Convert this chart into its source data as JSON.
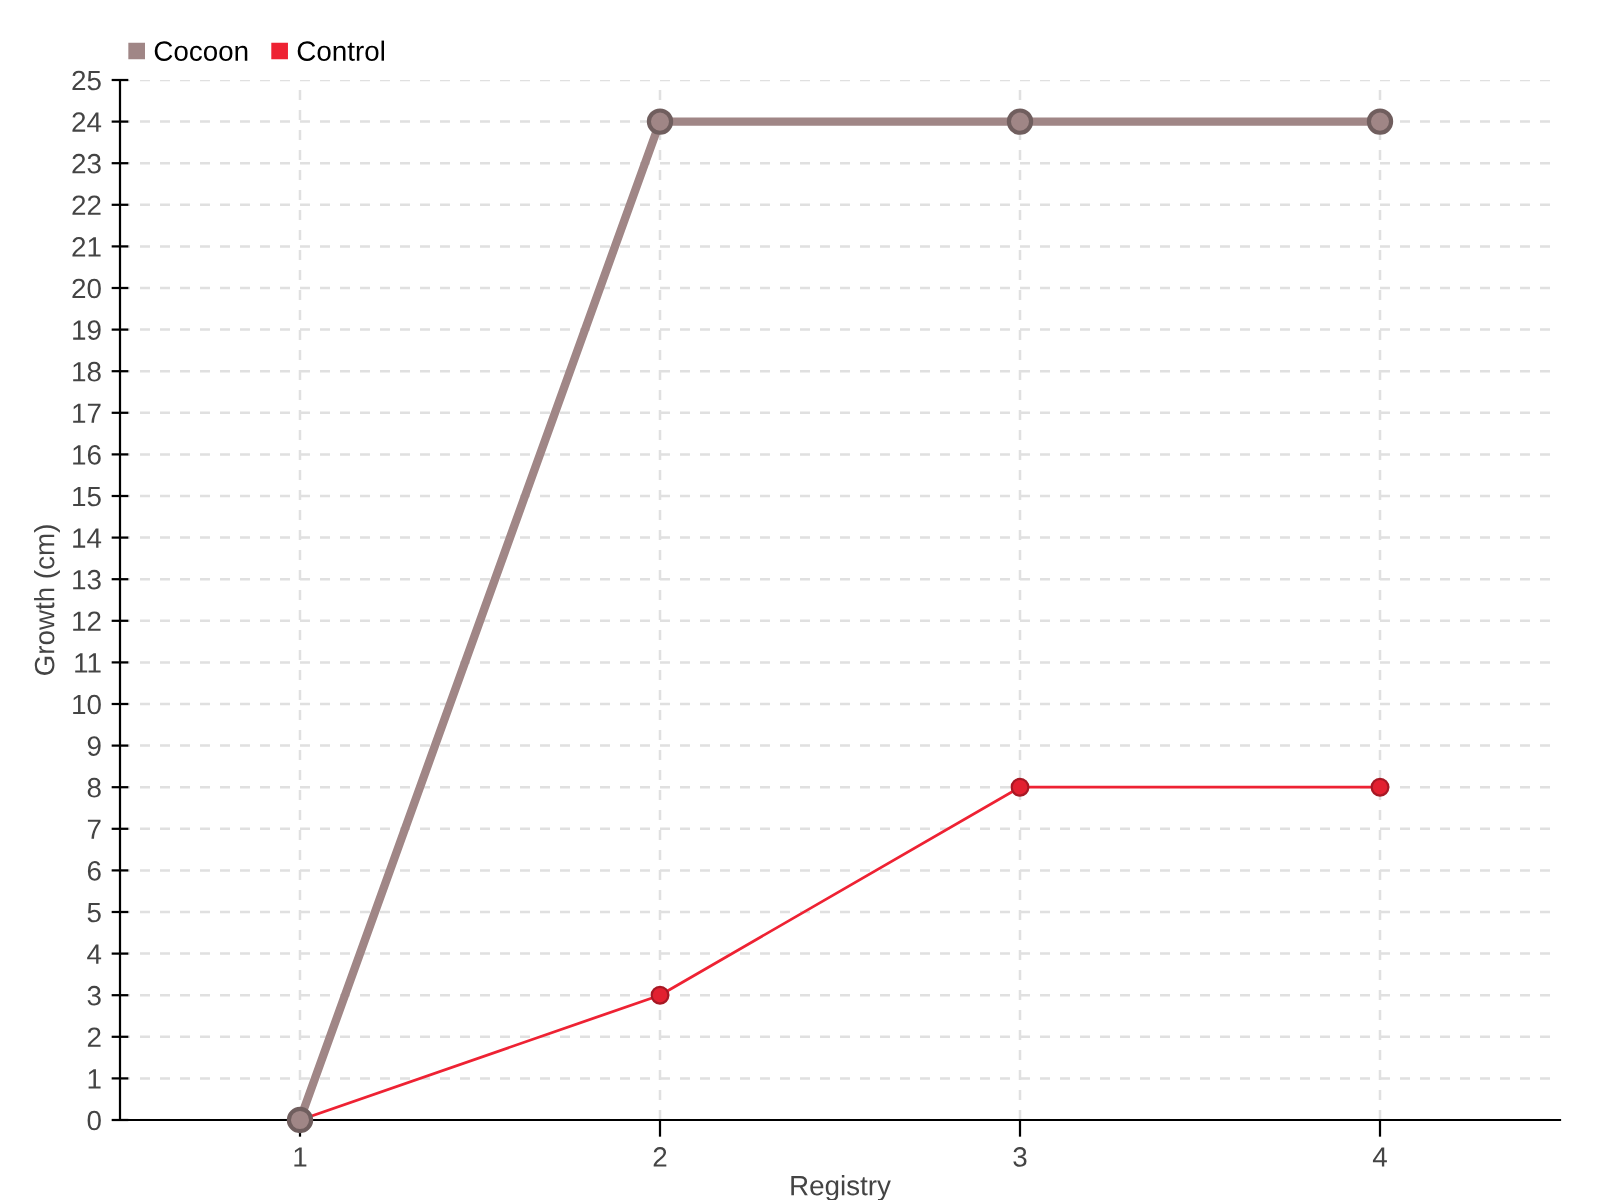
{
  "chart_data": {
    "type": "line",
    "xlabel": "Registry",
    "ylabel": "Growth (cm)",
    "categories": [
      "1",
      "2",
      "3",
      "4"
    ],
    "series": [
      {
        "name": "Cocoon",
        "color": "#a08686",
        "values": [
          0,
          24,
          24,
          24
        ]
      },
      {
        "name": "Control",
        "color": "#ee2233",
        "values": [
          0,
          3,
          8,
          8
        ]
      }
    ],
    "ylim": [
      0,
      25
    ],
    "yticks": [
      0,
      1,
      2,
      3,
      4,
      5,
      6,
      7,
      8,
      9,
      10,
      11,
      12,
      13,
      14,
      15,
      16,
      17,
      18,
      19,
      20,
      21,
      22,
      23,
      24,
      25
    ],
    "grid": true,
    "legend": "top left",
    "marker": "circle",
    "line_style": "solid"
  }
}
